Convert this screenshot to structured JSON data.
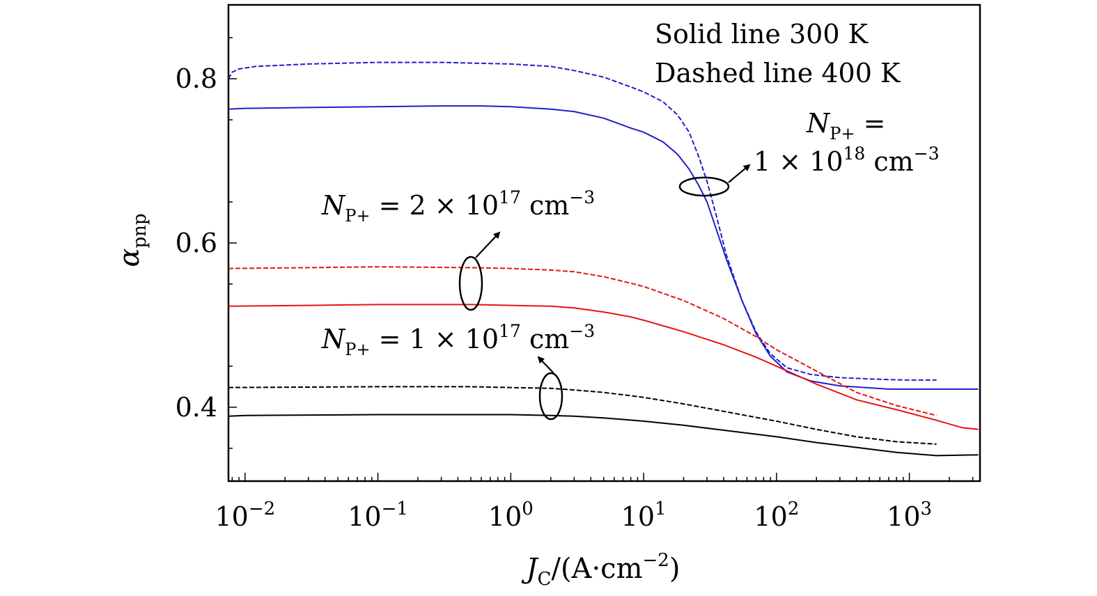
{
  "chart_data": {
    "type": "line",
    "x_scale": "log",
    "xlim": [
      0.0075,
      3400
    ],
    "ylim": [
      0.31,
      0.89
    ],
    "grid": false,
    "xlabel_parts": {
      "j": "J",
      "c": "C",
      "rest": "/(A·cm",
      "exp": "−2",
      "close": ")"
    },
    "ylabel_parts": {
      "alpha": "α",
      "sub": "pnp"
    },
    "x_ticks": [
      {
        "value": 0.01,
        "base": "10",
        "exp": "−2"
      },
      {
        "value": 0.1,
        "base": "10",
        "exp": "−1"
      },
      {
        "value": 1,
        "base": "10",
        "exp": "0"
      },
      {
        "value": 10,
        "base": "10",
        "exp": "1"
      },
      {
        "value": 100,
        "base": "10",
        "exp": "2"
      },
      {
        "value": 1000,
        "base": "10",
        "exp": "3"
      }
    ],
    "y_ticks": [
      {
        "value": 0.4,
        "label": "0.4"
      },
      {
        "value": 0.6,
        "label": "0.6"
      },
      {
        "value": 0.8,
        "label": "0.8"
      }
    ],
    "legend_text": {
      "line1": "Solid line 300 K",
      "line2": "Dashed line 400 K"
    },
    "annotations": {
      "npp_1e18": {
        "n": "N",
        "sub": "P+",
        "eq": " =",
        "mant": "1 × 10",
        "exp": "18",
        "unit": " cm",
        "unit_exp": "−3"
      },
      "npp_2e17": {
        "n": "N",
        "sub": "P+",
        "eq": " = 2 × 10",
        "exp": "17",
        "unit": " cm",
        "unit_exp": "−3"
      },
      "npp_1e17": {
        "n": "N",
        "sub": "P+",
        "eq": " = 1 × 10",
        "exp": "17",
        "unit": " cm",
        "unit_exp": "−3"
      }
    },
    "series": [
      {
        "group": "1e18",
        "temperature": "400 K",
        "dash": true,
        "color": "#1f1fcc",
        "points": [
          [
            0.0075,
            0.8
          ],
          [
            0.008,
            0.808
          ],
          [
            0.009,
            0.812
          ],
          [
            0.012,
            0.815
          ],
          [
            0.03,
            0.818
          ],
          [
            0.1,
            0.82
          ],
          [
            0.3,
            0.82
          ],
          [
            1,
            0.818
          ],
          [
            2,
            0.815
          ],
          [
            3,
            0.81
          ],
          [
            5,
            0.802
          ],
          [
            8,
            0.79
          ],
          [
            10,
            0.784
          ],
          [
            14,
            0.772
          ],
          [
            18,
            0.756
          ],
          [
            22,
            0.735
          ],
          [
            26,
            0.705
          ],
          [
            30,
            0.675
          ],
          [
            35,
            0.635
          ],
          [
            42,
            0.585
          ],
          [
            55,
            0.53
          ],
          [
            70,
            0.492
          ],
          [
            90,
            0.465
          ],
          [
            120,
            0.448
          ],
          [
            180,
            0.44
          ],
          [
            300,
            0.436
          ],
          [
            600,
            0.434
          ],
          [
            1000,
            0.433
          ],
          [
            1600,
            0.433
          ]
        ]
      },
      {
        "group": "1e18",
        "temperature": "300 K",
        "dash": false,
        "color": "#1f1fcc",
        "points": [
          [
            0.0075,
            0.763
          ],
          [
            0.01,
            0.764
          ],
          [
            0.03,
            0.765
          ],
          [
            0.1,
            0.766
          ],
          [
            0.3,
            0.767
          ],
          [
            0.6,
            0.767
          ],
          [
            1,
            0.766
          ],
          [
            2,
            0.763
          ],
          [
            3,
            0.76
          ],
          [
            5,
            0.752
          ],
          [
            8,
            0.74
          ],
          [
            10,
            0.735
          ],
          [
            14,
            0.723
          ],
          [
            18,
            0.708
          ],
          [
            22,
            0.69
          ],
          [
            26,
            0.67
          ],
          [
            30,
            0.65
          ],
          [
            35,
            0.618
          ],
          [
            42,
            0.58
          ],
          [
            55,
            0.53
          ],
          [
            70,
            0.49
          ],
          [
            90,
            0.462
          ],
          [
            120,
            0.443
          ],
          [
            180,
            0.432
          ],
          [
            300,
            0.426
          ],
          [
            700,
            0.422
          ],
          [
            1500,
            0.422
          ],
          [
            3300,
            0.422
          ]
        ]
      },
      {
        "group": "2e17",
        "temperature": "400 K",
        "dash": true,
        "color": "#e51414",
        "points": [
          [
            0.0075,
            0.569
          ],
          [
            0.03,
            0.57
          ],
          [
            0.1,
            0.571
          ],
          [
            0.5,
            0.57
          ],
          [
            1,
            0.569
          ],
          [
            2,
            0.567
          ],
          [
            3,
            0.565
          ],
          [
            5,
            0.559
          ],
          [
            8,
            0.551
          ],
          [
            10,
            0.547
          ],
          [
            20,
            0.53
          ],
          [
            40,
            0.508
          ],
          [
            70,
            0.486
          ],
          [
            100,
            0.47
          ],
          [
            200,
            0.444
          ],
          [
            400,
            0.418
          ],
          [
            800,
            0.402
          ],
          [
            1600,
            0.39
          ]
        ]
      },
      {
        "group": "2e17",
        "temperature": "300 K",
        "dash": false,
        "color": "#e51414",
        "points": [
          [
            0.0075,
            0.523
          ],
          [
            0.03,
            0.524
          ],
          [
            0.1,
            0.525
          ],
          [
            0.5,
            0.525
          ],
          [
            1,
            0.524
          ],
          [
            2,
            0.523
          ],
          [
            3,
            0.521
          ],
          [
            5,
            0.516
          ],
          [
            8,
            0.51
          ],
          [
            10,
            0.506
          ],
          [
            20,
            0.492
          ],
          [
            40,
            0.476
          ],
          [
            70,
            0.461
          ],
          [
            100,
            0.45
          ],
          [
            200,
            0.428
          ],
          [
            400,
            0.409
          ],
          [
            800,
            0.397
          ],
          [
            1600,
            0.384
          ],
          [
            2500,
            0.375
          ],
          [
            3300,
            0.373
          ]
        ]
      },
      {
        "group": "1e17",
        "temperature": "400 K",
        "dash": true,
        "color": "#000000",
        "points": [
          [
            0.0075,
            0.424
          ],
          [
            0.1,
            0.425
          ],
          [
            0.5,
            0.425
          ],
          [
            1,
            0.424
          ],
          [
            2,
            0.423
          ],
          [
            3,
            0.421
          ],
          [
            5,
            0.418
          ],
          [
            10,
            0.412
          ],
          [
            20,
            0.404
          ],
          [
            40,
            0.395
          ],
          [
            100,
            0.383
          ],
          [
            200,
            0.373
          ],
          [
            400,
            0.364
          ],
          [
            800,
            0.358
          ],
          [
            1600,
            0.355
          ]
        ]
      },
      {
        "group": "1e17",
        "temperature": "300 K",
        "dash": false,
        "color": "#000000",
        "points": [
          [
            0.0075,
            0.389
          ],
          [
            0.01,
            0.39
          ],
          [
            0.1,
            0.391
          ],
          [
            0.5,
            0.391
          ],
          [
            1,
            0.391
          ],
          [
            2,
            0.39
          ],
          [
            3,
            0.389
          ],
          [
            5,
            0.387
          ],
          [
            10,
            0.383
          ],
          [
            20,
            0.378
          ],
          [
            40,
            0.372
          ],
          [
            100,
            0.364
          ],
          [
            200,
            0.357
          ],
          [
            400,
            0.351
          ],
          [
            800,
            0.345
          ],
          [
            1600,
            0.341
          ],
          [
            3300,
            0.342
          ]
        ]
      }
    ]
  }
}
